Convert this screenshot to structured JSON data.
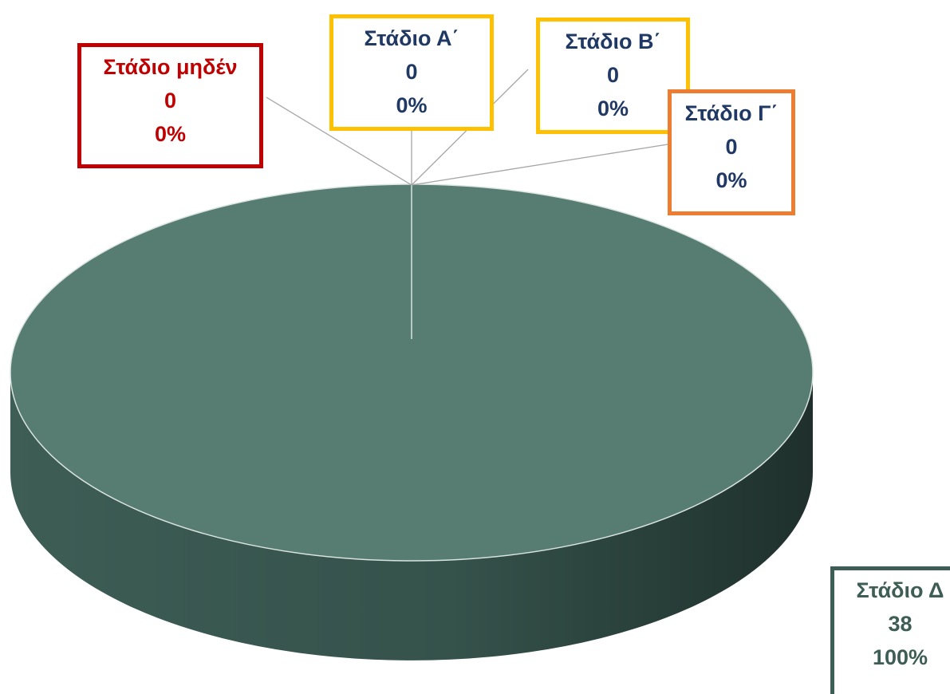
{
  "chart_data": {
    "type": "pie",
    "three_d": true,
    "series": [
      {
        "label": "Στάδιο μηδέν",
        "value": 0,
        "percent": "0%",
        "color": "#c00000",
        "label_color": "#c00000"
      },
      {
        "label": "Στάδιο Α΄",
        "value": 0,
        "percent": "0%",
        "color": "#ffc000",
        "label_color": "#1f3864"
      },
      {
        "label": "Στάδιο Β΄",
        "value": 0,
        "percent": "0%",
        "color": "#ffc000",
        "label_color": "#1f3864"
      },
      {
        "label": "Στάδιο Γ΄",
        "value": 0,
        "percent": "0%",
        "color": "#ed7d31",
        "label_color": "#1f3864"
      },
      {
        "label": "Στάδιο Δ",
        "value": 38,
        "percent": "100%",
        "color": "#577d72",
        "label_color": "#3e5d54"
      }
    ]
  }
}
